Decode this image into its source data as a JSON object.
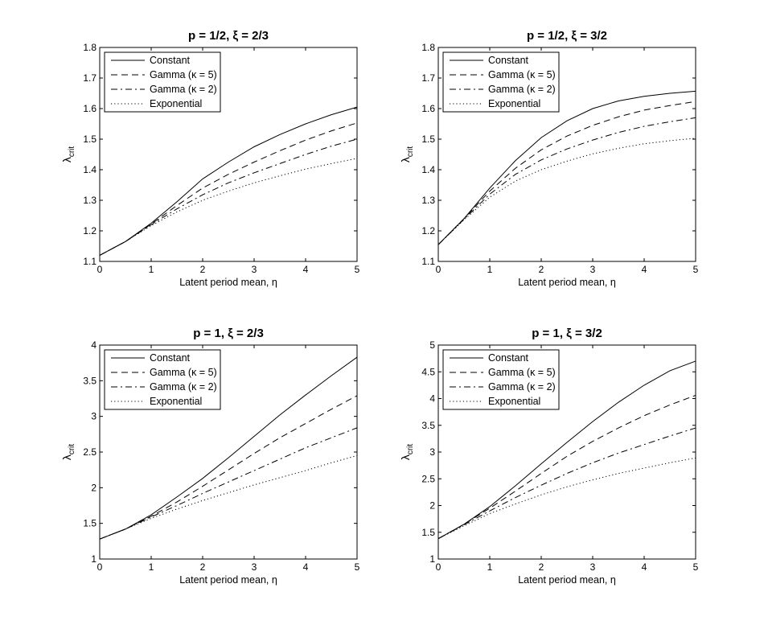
{
  "chart_data": [
    {
      "type": "line",
      "title": "p = 1/2, ξ = 2/3",
      "xlabel": "Latent period mean, η",
      "ylabel_main": "λ",
      "ylabel_sub": "crit",
      "xlim": [
        0,
        5
      ],
      "ylim": [
        1.1,
        1.8
      ],
      "xticks": [
        "0",
        "1",
        "2",
        "3",
        "4",
        "5"
      ],
      "yticks": [
        "1.1",
        "1.2",
        "1.3",
        "1.4",
        "1.5",
        "1.6",
        "1.7",
        "1.8"
      ],
      "legend_position": "top-left",
      "x": [
        0,
        0.5,
        1,
        1.5,
        2,
        2.5,
        3,
        3.5,
        4,
        4.5,
        5
      ],
      "series": [
        {
          "name": "Constant",
          "style": "solid",
          "values": [
            1.12,
            1.165,
            1.225,
            1.295,
            1.37,
            1.425,
            1.475,
            1.515,
            1.55,
            1.58,
            1.605
          ]
        },
        {
          "name": "Gamma (κ = 5)",
          "style": "dashed",
          "values": [
            1.12,
            1.165,
            1.222,
            1.283,
            1.34,
            1.385,
            1.425,
            1.462,
            1.497,
            1.527,
            1.553
          ]
        },
        {
          "name": "Gamma (κ = 2)",
          "style": "dashdot",
          "values": [
            1.12,
            1.165,
            1.22,
            1.272,
            1.318,
            1.357,
            1.39,
            1.42,
            1.45,
            1.477,
            1.5
          ]
        },
        {
          "name": "Exponential",
          "style": "dotted",
          "values": [
            1.12,
            1.165,
            1.217,
            1.262,
            1.3,
            1.33,
            1.357,
            1.38,
            1.402,
            1.42,
            1.437
          ]
        }
      ]
    },
    {
      "type": "line",
      "title": "p = 1/2, ξ = 3/2",
      "xlabel": "Latent period mean, η",
      "ylabel_main": "λ",
      "ylabel_sub": "crit",
      "xlim": [
        0,
        5
      ],
      "ylim": [
        1.1,
        1.8
      ],
      "xticks": [
        "0",
        "1",
        "2",
        "3",
        "4",
        "5"
      ],
      "yticks": [
        "1.1",
        "1.2",
        "1.3",
        "1.4",
        "1.5",
        "1.6",
        "1.7",
        "1.8"
      ],
      "legend_position": "top-left",
      "x": [
        0,
        0.5,
        1,
        1.5,
        2,
        2.5,
        3,
        3.5,
        4,
        4.5,
        5
      ],
      "series": [
        {
          "name": "Constant",
          "style": "solid",
          "values": [
            1.155,
            1.24,
            1.34,
            1.43,
            1.505,
            1.56,
            1.6,
            1.625,
            1.64,
            1.65,
            1.657
          ]
        },
        {
          "name": "Gamma (κ = 5)",
          "style": "dashed",
          "values": [
            1.155,
            1.24,
            1.33,
            1.405,
            1.465,
            1.51,
            1.545,
            1.573,
            1.595,
            1.61,
            1.623
          ]
        },
        {
          "name": "Gamma (κ = 2)",
          "style": "dashdot",
          "values": [
            1.155,
            1.238,
            1.32,
            1.385,
            1.432,
            1.468,
            1.497,
            1.522,
            1.542,
            1.557,
            1.57
          ]
        },
        {
          "name": "Exponential",
          "style": "dotted",
          "values": [
            1.155,
            1.236,
            1.31,
            1.363,
            1.4,
            1.428,
            1.452,
            1.47,
            1.485,
            1.495,
            1.503
          ]
        }
      ]
    },
    {
      "type": "line",
      "title": "p = 1, ξ = 2/3",
      "xlabel": "Latent period mean, η",
      "ylabel_main": "λ",
      "ylabel_sub": "crit",
      "xlim": [
        0,
        5
      ],
      "ylim": [
        1,
        4
      ],
      "xticks": [
        "0",
        "1",
        "2",
        "3",
        "4",
        "5"
      ],
      "yticks": [
        "1",
        "1.5",
        "2",
        "2.5",
        "3",
        "3.5",
        "4"
      ],
      "legend_position": "top-left",
      "x": [
        0,
        0.5,
        1,
        1.5,
        2,
        2.5,
        3,
        3.5,
        4,
        4.5,
        5
      ],
      "series": [
        {
          "name": "Constant",
          "style": "solid",
          "values": [
            1.28,
            1.42,
            1.62,
            1.87,
            2.13,
            2.42,
            2.72,
            3.02,
            3.3,
            3.57,
            3.83
          ]
        },
        {
          "name": "Gamma (κ = 5)",
          "style": "dashed",
          "values": [
            1.28,
            1.42,
            1.6,
            1.8,
            2.02,
            2.25,
            2.48,
            2.7,
            2.9,
            3.1,
            3.29
          ]
        },
        {
          "name": "Gamma (κ = 2)",
          "style": "dashdot",
          "values": [
            1.28,
            1.42,
            1.59,
            1.75,
            1.92,
            2.08,
            2.24,
            2.4,
            2.56,
            2.7,
            2.84
          ]
        },
        {
          "name": "Exponential",
          "style": "dotted",
          "values": [
            1.28,
            1.42,
            1.57,
            1.7,
            1.82,
            1.93,
            2.04,
            2.14,
            2.24,
            2.35,
            2.45
          ]
        }
      ]
    },
    {
      "type": "line",
      "title": "p = 1, ξ = 3/2",
      "xlabel": "Latent period mean, η",
      "ylabel_main": "λ",
      "ylabel_sub": "crit",
      "xlim": [
        0,
        5
      ],
      "ylim": [
        1,
        5
      ],
      "xticks": [
        "0",
        "1",
        "2",
        "3",
        "4",
        "5"
      ],
      "yticks": [
        "1",
        "1.5",
        "2",
        "2.5",
        "3",
        "3.5",
        "4",
        "4.5",
        "5"
      ],
      "legend_position": "top-left",
      "x": [
        0,
        0.5,
        1,
        1.5,
        2,
        2.5,
        3,
        3.5,
        4,
        4.5,
        5
      ],
      "series": [
        {
          "name": "Constant",
          "style": "solid",
          "values": [
            1.38,
            1.65,
            1.98,
            2.37,
            2.78,
            3.18,
            3.57,
            3.93,
            4.25,
            4.52,
            4.7
          ]
        },
        {
          "name": "Gamma (κ = 5)",
          "style": "dashed",
          "values": [
            1.38,
            1.65,
            1.95,
            2.27,
            2.6,
            2.92,
            3.2,
            3.45,
            3.68,
            3.88,
            4.06
          ]
        },
        {
          "name": "Gamma (κ = 2)",
          "style": "dashdot",
          "values": [
            1.38,
            1.64,
            1.9,
            2.15,
            2.38,
            2.6,
            2.8,
            2.98,
            3.14,
            3.3,
            3.45
          ]
        },
        {
          "name": "Exponential",
          "style": "dotted",
          "values": [
            1.38,
            1.62,
            1.85,
            2.03,
            2.2,
            2.35,
            2.48,
            2.6,
            2.7,
            2.8,
            2.89
          ]
        }
      ]
    }
  ]
}
